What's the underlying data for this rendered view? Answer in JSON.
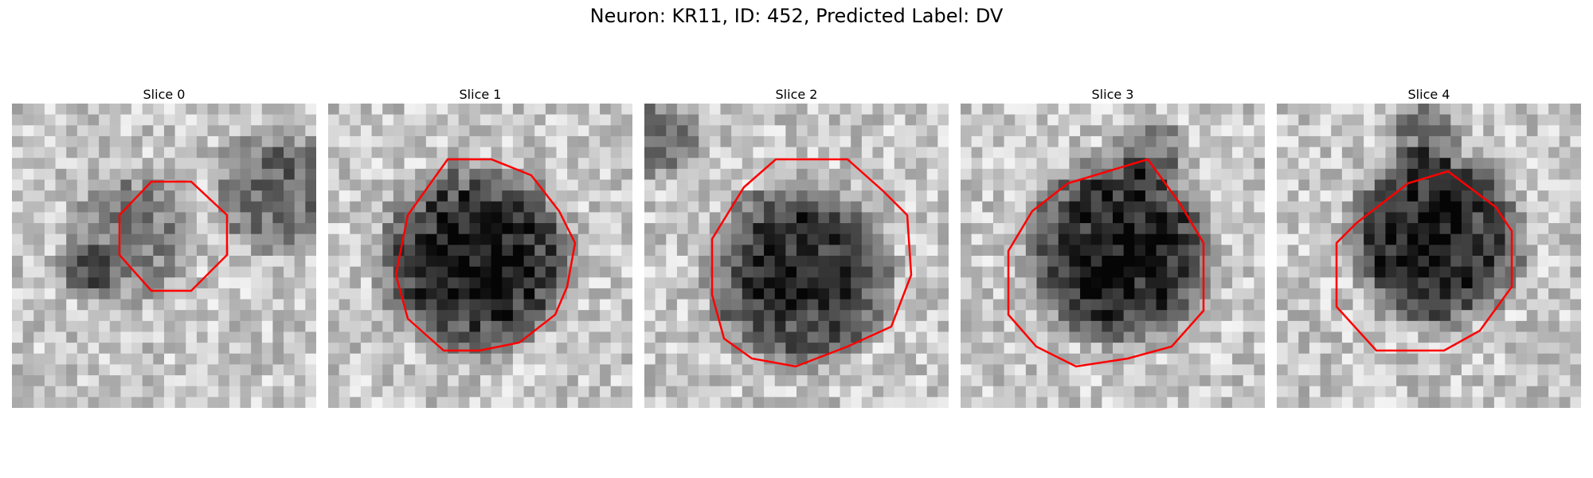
{
  "figure": {
    "title": "Neuron: KR11, ID: 452, Predicted Label: DV"
  },
  "colors": {
    "contour": "#ff0000"
  },
  "panels": [
    {
      "title": "Slice 0"
    },
    {
      "title": "Slice 1"
    },
    {
      "title": "Slice 2"
    },
    {
      "title": "Slice 3"
    },
    {
      "title": "Slice 4"
    }
  ]
}
